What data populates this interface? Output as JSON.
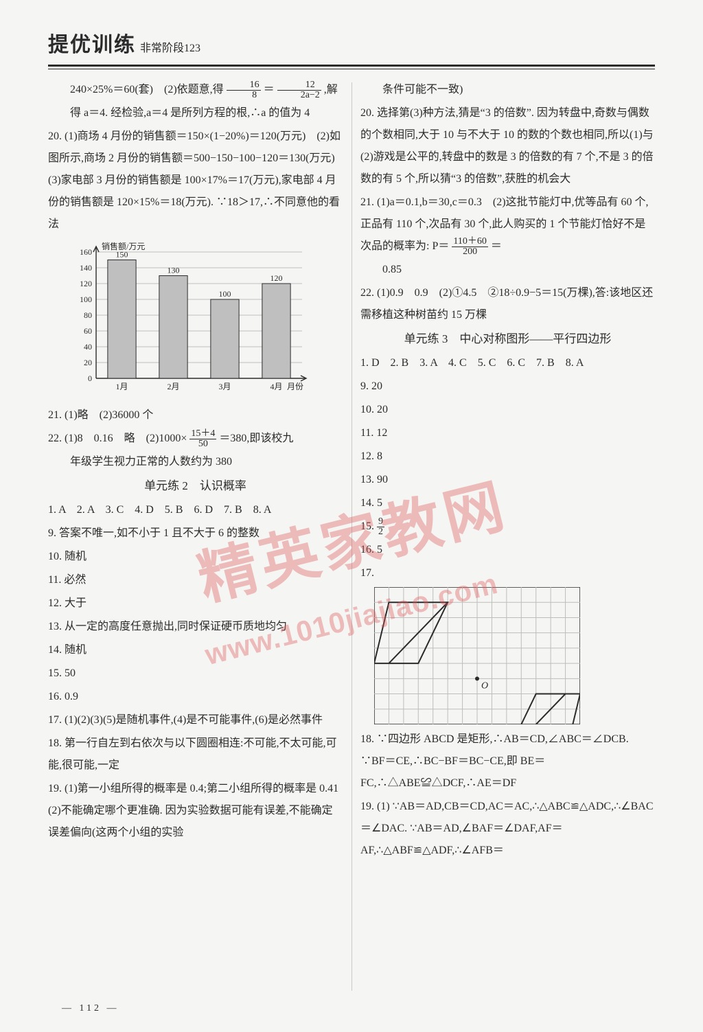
{
  "header": {
    "title_main": "提优训练",
    "title_sub": "非常阶段123"
  },
  "page_number": "— 112 —",
  "watermark": {
    "text1": "精英家教网",
    "text2": "www.1010jiajiao.com"
  },
  "chart": {
    "type": "bar",
    "y_axis_label": "销售额/万元",
    "x_axis_label": "月份",
    "categories": [
      "1月",
      "2月",
      "3月",
      "4月"
    ],
    "values": [
      150,
      130,
      100,
      120
    ],
    "value_labels": [
      "150",
      "130",
      "100",
      "120"
    ],
    "ylim": [
      0,
      160
    ],
    "ytick_step": 20,
    "yticks": [
      "0",
      "20",
      "40",
      "60",
      "80",
      "100",
      "120",
      "140",
      "160"
    ],
    "bar_color": "#bfbfbf",
    "bar_border": "#2b2b2b",
    "grid_color": "#c0c0c0",
    "axis_color": "#2b2b2b",
    "bar_width_ratio": 0.55,
    "label_fontsize": 12,
    "background_color": "#f5f5f3"
  },
  "grid_fig": {
    "type": "grid-geometry",
    "cols": 14,
    "rows": 9,
    "cell_color": "#bdbdbd",
    "shape_border": "#2b2b2b",
    "origin_label": "O",
    "point_fill": "#2b2b2b"
  },
  "left": {
    "p1_a": "240×25%＝60(套)　(2)依题意,得",
    "p1_frac1_n": "16",
    "p1_frac1_d": "8",
    "p1_mid": "＝",
    "p1_frac2_n": "12",
    "p1_frac2_d": "2a−2",
    "p1_b": ",解",
    "p2": "得 a＝4. 经检验,a＝4 是所列方程的根,∴a 的值为 4",
    "p3": "20. (1)商场 4 月份的销售额＝150×(1−20%)＝120(万元)　(2)如图所示,商场 2 月份的销售额＝500−150−100−120＝130(万元)　(3)家电部 3 月份的销售额是 100×17%＝17(万元),家电部 4 月份的销售额是 120×15%＝18(万元). ∵18＞17,∴不同意他的看法",
    "p4": "21. (1)略　(2)36000 个",
    "p5_a": "22. (1)8　0.16　略　(2)1000×",
    "p5_frac_n": "15＋4",
    "p5_frac_d": "50",
    "p5_b": "＝380,即该校九",
    "p6": "年级学生视力正常的人数约为 380",
    "section2": "单元练 2　认识概率",
    "p7": "1. A　2. A　3. C　4. D　5. B　6. D　7. B　8. A",
    "p8": "9. 答案不唯一,如不小于 1 且不大于 6 的整数",
    "p9": "10. 随机",
    "p10": "11. 必然",
    "p11": "12. 大于",
    "p12": "13. 从一定的高度任意抛出,同时保证硬币质地均匀",
    "p13": "14. 随机",
    "p14": "15. 50",
    "p15": "16. 0.9",
    "p16": "17. (1)(2)(3)(5)是随机事件,(4)是不可能事件,(6)是必然事件",
    "p17": "18. 第一行自左到右依次与以下圆圈相连:不可能,不太可能,可能,很可能,一定",
    "p18": "19. (1)第一小组所得的概率是 0.4;第二小组所得的概率是 0.41　(2)不能确定哪个更准确. 因为实验数据可能有误差,不能确定误差偏向(这两个小组的实验"
  },
  "right": {
    "p1": "条件可能不一致)",
    "p2": "20. 选择第(3)种方法,猜是“3 的倍数”. 因为转盘中,奇数与偶数的个数相同,大于 10 与不大于 10 的数的个数也相同,所以(1)与(2)游戏是公平的,转盘中的数是 3 的倍数的有 7 个,不是 3 的倍数的有 5 个,所以猜“3 的倍数”,获胜的机会大",
    "p3_a": "21. (1)a＝0.1,b＝30,c＝0.3　(2)这批节能灯中,优等品有 60 个,正品有 110 个,次品有 30 个,此人购买的 1 个节能灯恰好不是次品的概率为: P＝",
    "p3_frac_n": "110＋60",
    "p3_frac_d": "200",
    "p3_b": "＝",
    "p4": "0.85",
    "p5": "22. (1)0.9　0.9　(2)①4.5　②18÷0.9−5＝15(万棵),答:该地区还需移植这种树苗约 15 万棵",
    "section3": "单元练 3　中心对称图形——平行四边形",
    "p6": "1. D　2. B　3. A　4. C　5. C　6. C　7. B　8. A",
    "p7": "9. 20",
    "p8": "10. 20",
    "p9": "11. 12",
    "p10": "12. 8",
    "p11": "13. 90",
    "p12": "14. 5",
    "p13_a": "15. ",
    "p13_frac_n": "9",
    "p13_frac_d": "2",
    "p14": "16. 5",
    "p15": "17.",
    "p16": "18. ∵四边形 ABCD 是矩形,∴AB＝CD,∠ABC＝∠DCB. ∵BF＝CE,∴BC−BF＝BC−CE,即 BE＝FC,∴△ABE≌△DCF,∴AE＝DF",
    "p17": "19. (1) ∵AB＝AD,CB＝CD,AC＝AC,∴△ABC≌△ADC,∴∠BAC＝∠DAC. ∵AB＝AD,∠BAF＝∠DAF,AF＝AF,∴△ABF≌△ADF,∴∠AFB＝"
  }
}
